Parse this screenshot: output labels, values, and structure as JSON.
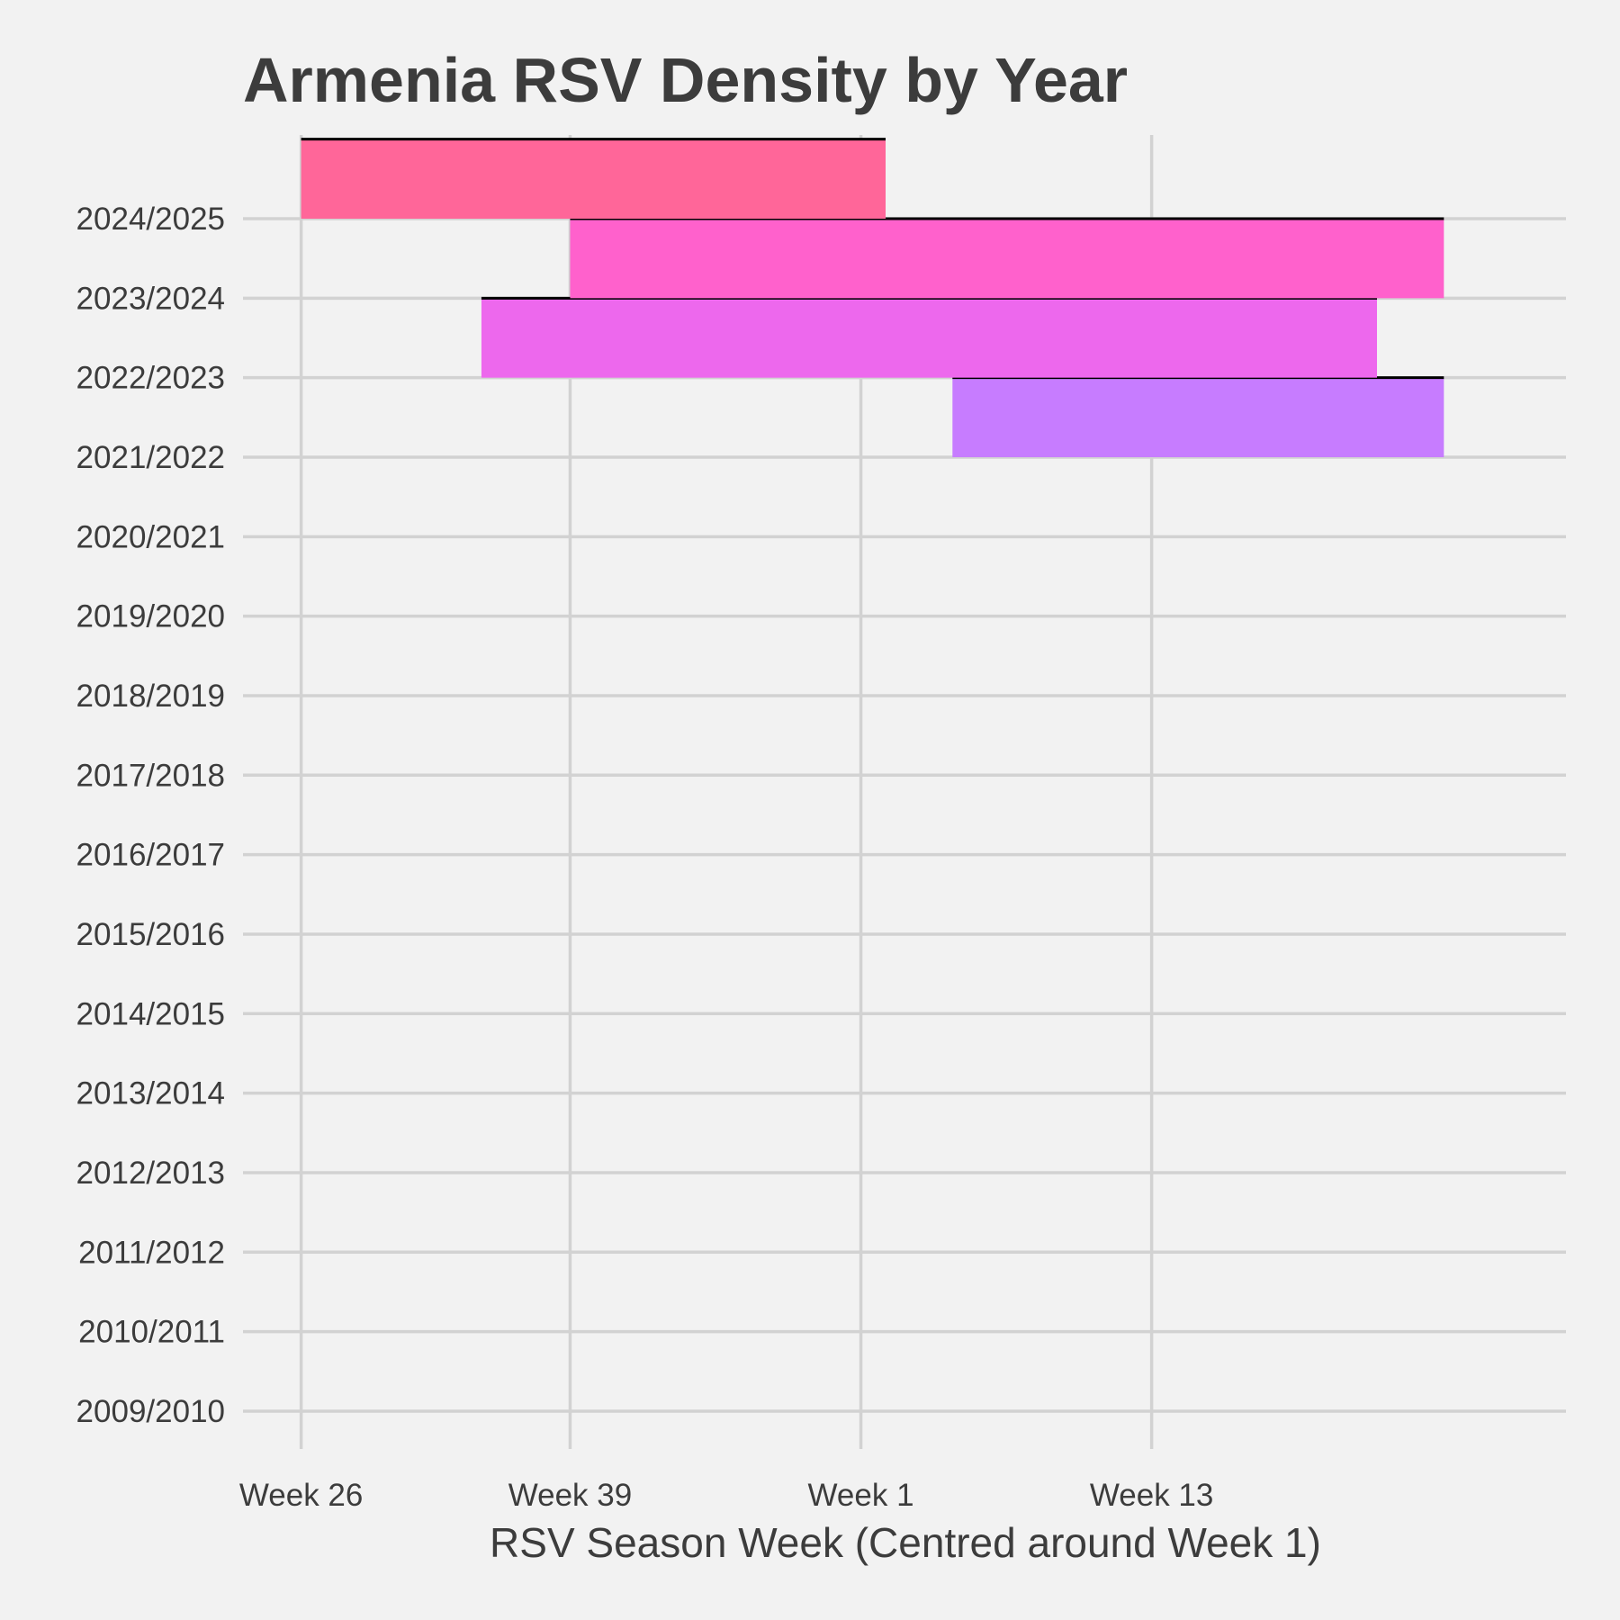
{
  "chart_data": {
    "type": "ridgeline",
    "title": "Armenia RSV Density by Year",
    "xlabel": "RSV Season Week (Centred around Week 1)",
    "ylabel": "",
    "x_unit": "season week index (0 = Week 26)",
    "xlim": [
      -2,
      43.5
    ],
    "x_ticks": [
      {
        "value": 0,
        "label": "Week 26"
      },
      {
        "value": 9.25,
        "label": "Week 39"
      },
      {
        "value": 19.25,
        "label": "Week 1"
      },
      {
        "value": 29.25,
        "label": "Week 13"
      }
    ],
    "categories": [
      "2009/2010",
      "2010/2011",
      "2011/2012",
      "2012/2013",
      "2013/2014",
      "2014/2015",
      "2015/2016",
      "2016/2017",
      "2017/2018",
      "2018/2019",
      "2019/2020",
      "2020/2021",
      "2021/2022",
      "2022/2023",
      "2023/2024",
      "2024/2025"
    ],
    "series": [
      {
        "category": "2024/2025",
        "x_start": 0,
        "x_end": 20.1,
        "color": "#ff6699"
      },
      {
        "category": "2023/2024",
        "x_start": 9.25,
        "x_end": 39.3,
        "color": "#ff61cc"
      },
      {
        "category": "2022/2023",
        "x_start": 6.2,
        "x_end": 37.0,
        "color": "#ed68ed"
      },
      {
        "category": "2021/2022",
        "x_start": 22.4,
        "x_end": 39.3,
        "color": "#c77cff"
      }
    ],
    "grid": true,
    "legend": "none"
  }
}
